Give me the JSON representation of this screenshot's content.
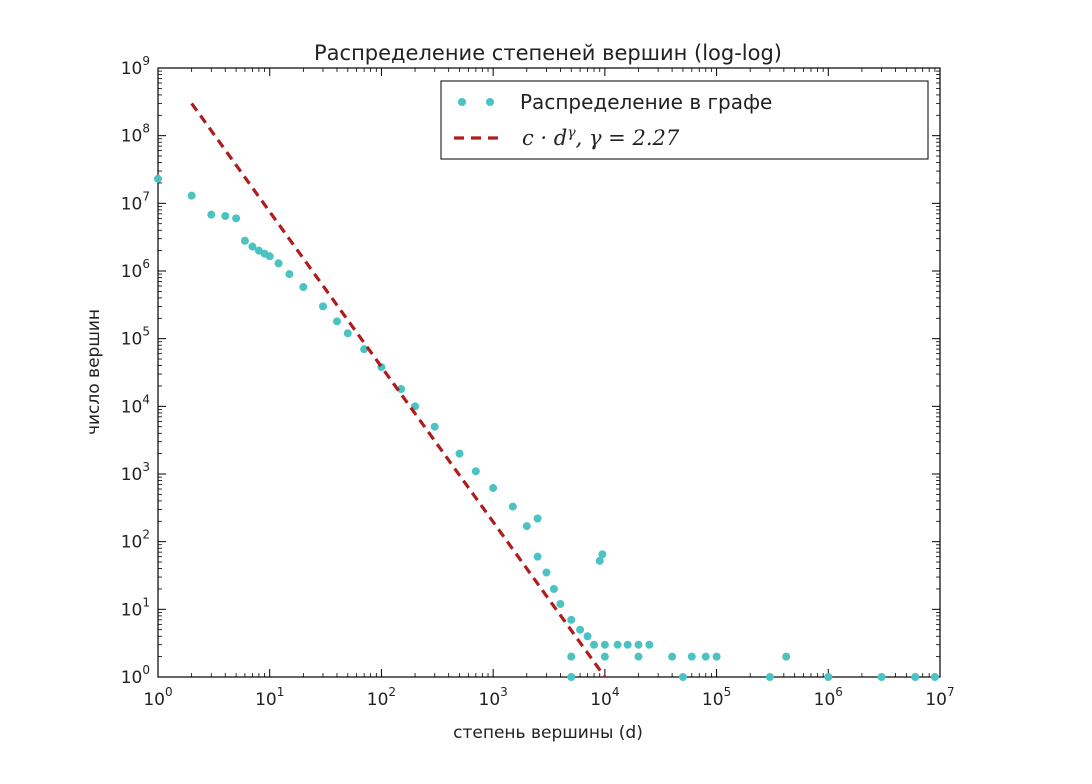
{
  "chart_data": {
    "type": "scatter",
    "title": "Распределение степеней вершин (log-log)",
    "xlabel": "степень вершины (d)",
    "ylabel": "число вершин",
    "xscale": "log",
    "yscale": "log",
    "xlim": [
      1,
      10000000
    ],
    "ylim": [
      1,
      1000000000
    ],
    "x_ticks": [
      "10^0",
      "10^1",
      "10^2",
      "10^3",
      "10^4",
      "10^5",
      "10^6",
      "10^7"
    ],
    "y_ticks": [
      "10^0",
      "10^1",
      "10^2",
      "10^3",
      "10^4",
      "10^5",
      "10^6",
      "10^7",
      "10^8",
      "10^9"
    ],
    "legend_position": "top-right",
    "series": [
      {
        "name": "Распределение в графе",
        "kind": "scatter",
        "color": "#4cc3c3",
        "points": [
          [
            1,
            23000000
          ],
          [
            2,
            13000000
          ],
          [
            3,
            6800000
          ],
          [
            4,
            6500000
          ],
          [
            5,
            6000000
          ],
          [
            6,
            2800000
          ],
          [
            7,
            2300000
          ],
          [
            8,
            2000000
          ],
          [
            9,
            1800000
          ],
          [
            10,
            1650000
          ],
          [
            12,
            1300000
          ],
          [
            15,
            900000
          ],
          [
            20,
            580000
          ],
          [
            30,
            300000
          ],
          [
            40,
            180000
          ],
          [
            50,
            120000
          ],
          [
            70,
            70000
          ],
          [
            100,
            38000
          ],
          [
            150,
            18000
          ],
          [
            200,
            10000
          ],
          [
            300,
            5000
          ],
          [
            500,
            2000
          ],
          [
            700,
            1100
          ],
          [
            1000,
            620
          ],
          [
            1500,
            330
          ],
          [
            2000,
            170
          ],
          [
            2500,
            60
          ],
          [
            3000,
            35
          ],
          [
            3500,
            20
          ],
          [
            4000,
            12
          ],
          [
            5000,
            7
          ],
          [
            6000,
            5
          ],
          [
            7000,
            4
          ],
          [
            8000,
            3
          ],
          [
            10000,
            3
          ],
          [
            13000,
            3
          ],
          [
            16000,
            3
          ],
          [
            20000,
            3
          ],
          [
            25000,
            3
          ],
          [
            5000,
            2
          ],
          [
            10000,
            2
          ],
          [
            20000,
            2
          ],
          [
            40000,
            2
          ],
          [
            60000,
            2
          ],
          [
            80000,
            2
          ],
          [
            100000,
            2
          ],
          [
            2500,
            220
          ],
          [
            9500,
            65
          ],
          [
            9000,
            52
          ],
          [
            420000,
            2
          ],
          [
            5000,
            1
          ],
          [
            50000,
            1
          ],
          [
            300000,
            1
          ],
          [
            1000000,
            1
          ],
          [
            3000000,
            1
          ],
          [
            6000000,
            1
          ],
          [
            9000000,
            1
          ]
        ]
      },
      {
        "name": "c·d^γ, γ = 2.27",
        "kind": "line",
        "style": "dashed",
        "color": "#b01c1c",
        "gamma": 2.27,
        "points": [
          [
            2,
            300000000
          ],
          [
            10000,
            1
          ]
        ]
      }
    ],
    "legend": {
      "entries": [
        {
          "label": "Распределение в графе",
          "marker": "dots",
          "color": "#4cc3c3"
        },
        {
          "label_math": "c · d^γ, γ = 2.27",
          "marker": "dashes",
          "color": "#b01c1c"
        }
      ]
    }
  }
}
